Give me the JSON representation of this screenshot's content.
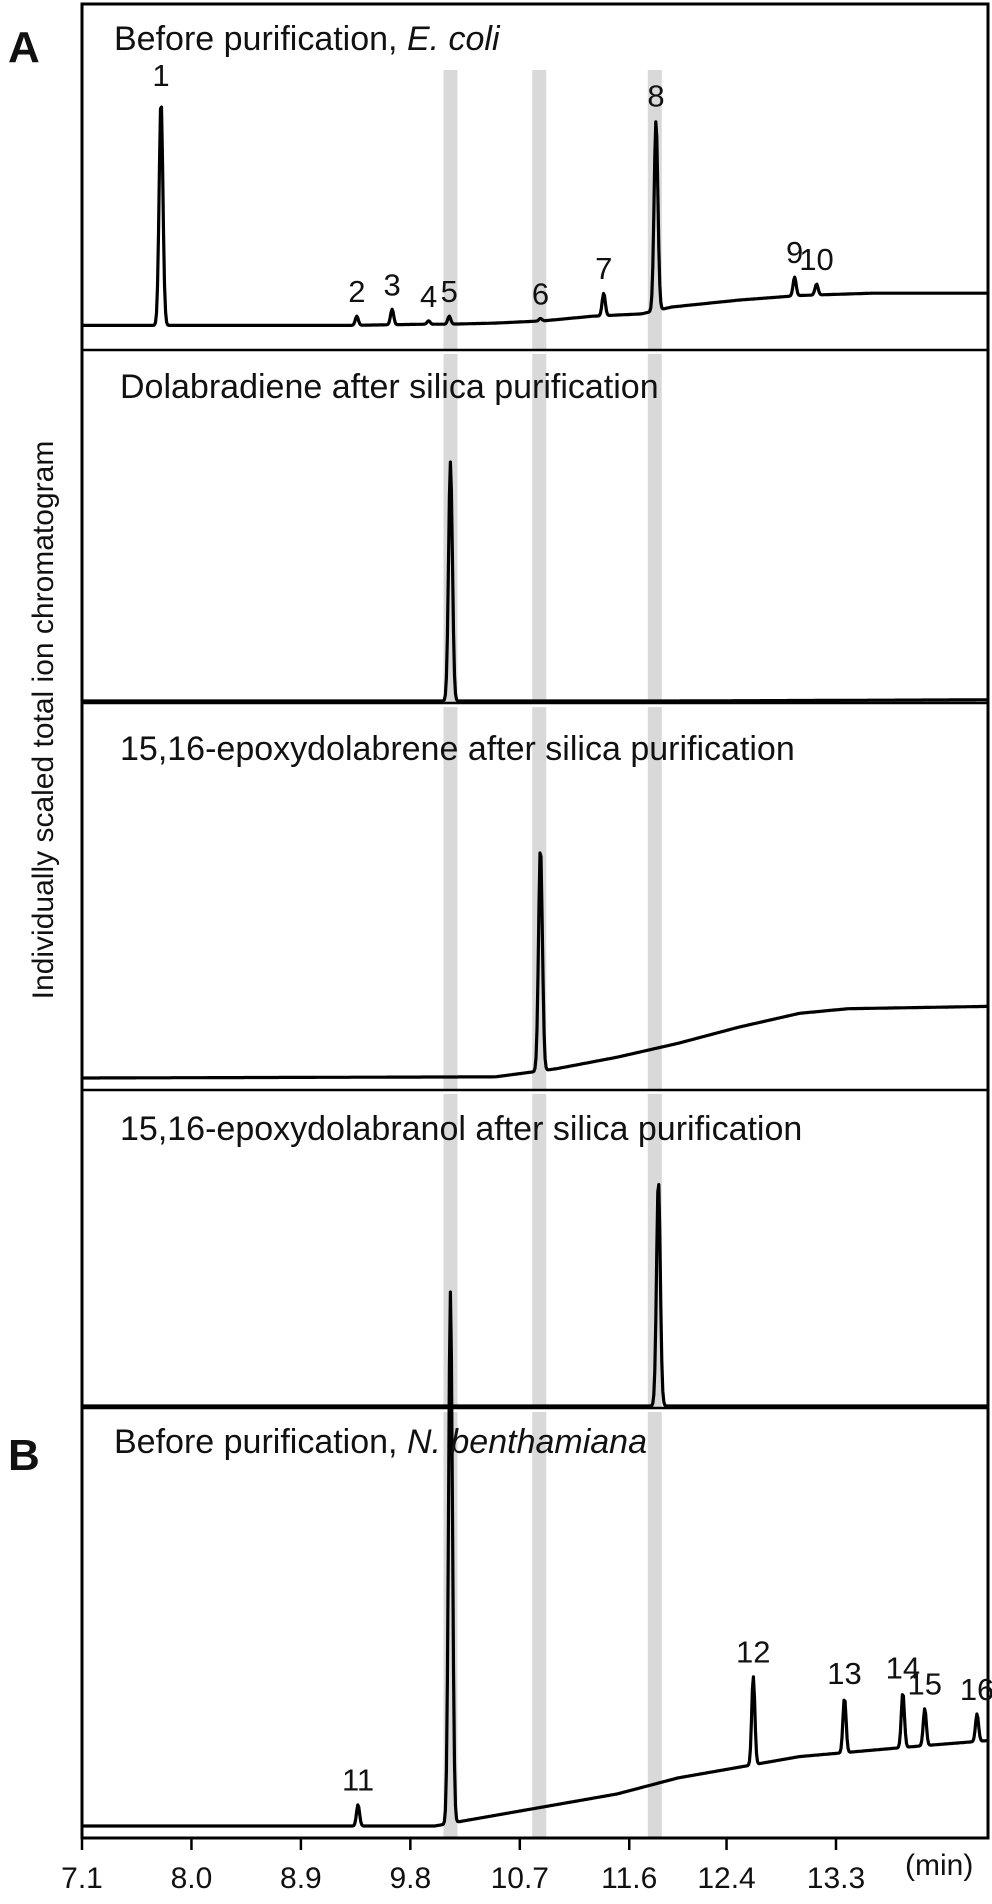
{
  "figure": {
    "panel_letters": [
      "A",
      "B"
    ],
    "ylabel": "Individually scaled total ion chromatogram",
    "xunit": "(min)"
  },
  "chart_data": {
    "type": "line",
    "xlabel": "(min)",
    "ylabel": "Individually scaled total ion chromatogram",
    "xlim": [
      7.1,
      14.55
    ],
    "xticks": [
      "7.1",
      "8.0",
      "8.9",
      "9.8",
      "10.7",
      "11.6",
      "12.4",
      "13.3"
    ],
    "xtick_values": [
      7.1,
      8.0,
      8.9,
      9.8,
      10.7,
      11.6,
      12.4,
      13.3
    ],
    "highlight_bands": [
      10.13,
      10.86,
      11.81
    ],
    "highlight_color": "#d9d9d9",
    "grid": false,
    "series": [
      {
        "title_prefix": "Before purification",
        "title_italic": "E. coli",
        "panel": "A",
        "baseline": [
          [
            7.1,
            0.02
          ],
          [
            9.3,
            0.02
          ],
          [
            9.9,
            0.025
          ],
          [
            10.1,
            0.025
          ],
          [
            10.5,
            0.03
          ],
          [
            10.9,
            0.04
          ],
          [
            11.3,
            0.06
          ],
          [
            11.7,
            0.07
          ],
          [
            11.95,
            0.1
          ],
          [
            12.5,
            0.13
          ],
          [
            13.0,
            0.15
          ],
          [
            13.6,
            0.16
          ],
          [
            14.55,
            0.16
          ]
        ],
        "peaks": [
          {
            "label": "1",
            "x": 7.75,
            "y": 1.0
          },
          {
            "label": "2",
            "x": 9.36,
            "y": 0.06
          },
          {
            "label": "3",
            "x": 9.65,
            "y": 0.09
          },
          {
            "label": "4",
            "x": 9.95,
            "y": 0.04
          },
          {
            "label": "5",
            "x": 10.12,
            "y": 0.06
          },
          {
            "label": "6",
            "x": 10.87,
            "y": 0.05
          },
          {
            "label": "7",
            "x": 11.39,
            "y": 0.16
          },
          {
            "label": "8",
            "x": 11.82,
            "y": 0.91
          },
          {
            "label": "9",
            "x": 12.96,
            "y": 0.23
          },
          {
            "label": "10",
            "x": 13.14,
            "y": 0.2
          }
        ]
      },
      {
        "title": "Dolabradiene after silica purification",
        "panel": "A",
        "baseline": [
          [
            7.1,
            0.0
          ],
          [
            11.9,
            0.0
          ],
          [
            14.55,
            0.005
          ]
        ],
        "peaks": [
          {
            "label": "",
            "x": 10.13,
            "y": 1.0
          }
        ]
      },
      {
        "title": "15,16-epoxydolabrene after silica purification",
        "panel": "A",
        "baseline": [
          [
            7.1,
            0.0
          ],
          [
            10.5,
            0.005
          ],
          [
            11.0,
            0.04
          ],
          [
            11.5,
            0.09
          ],
          [
            12.0,
            0.15
          ],
          [
            12.5,
            0.22
          ],
          [
            13.0,
            0.28
          ],
          [
            13.4,
            0.3
          ],
          [
            14.55,
            0.31
          ]
        ],
        "peaks": [
          {
            "label": "",
            "x": 10.87,
            "y": 1.0
          }
        ]
      },
      {
        "title": "15,16-epoxydolabranol after silica purification",
        "panel": "A",
        "baseline": [
          [
            7.1,
            0.0
          ],
          [
            14.55,
            0.0
          ]
        ],
        "peaks": [
          {
            "label": "",
            "x": 11.84,
            "y": 1.0
          }
        ]
      },
      {
        "title_prefix": "Before purification",
        "title_italic": "N. benthamiana",
        "panel": "B",
        "baseline": [
          [
            7.1,
            0.0
          ],
          [
            10.0,
            0.0
          ],
          [
            10.5,
            0.02
          ],
          [
            11.0,
            0.04
          ],
          [
            11.5,
            0.06
          ],
          [
            12.0,
            0.09
          ],
          [
            12.5,
            0.11
          ],
          [
            13.0,
            0.13
          ],
          [
            13.5,
            0.14
          ],
          [
            14.0,
            0.15
          ],
          [
            14.55,
            0.16
          ]
        ],
        "peaks": [
          {
            "label": "",
            "x": 10.13,
            "y": 1.0
          },
          {
            "label": "11",
            "x": 9.37,
            "y": 0.04
          },
          {
            "label": "12",
            "x": 12.62,
            "y": 0.28
          },
          {
            "label": "13",
            "x": 13.37,
            "y": 0.24
          },
          {
            "label": "14",
            "x": 13.85,
            "y": 0.25
          },
          {
            "label": "15",
            "x": 14.03,
            "y": 0.22
          },
          {
            "label": "16",
            "x": 14.46,
            "y": 0.21
          }
        ]
      }
    ]
  }
}
